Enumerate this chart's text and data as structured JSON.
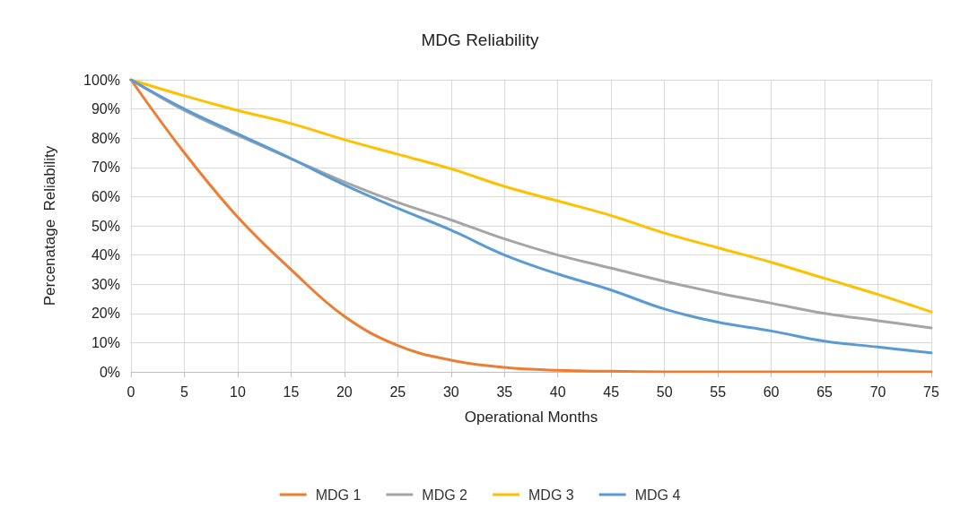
{
  "chart_data": {
    "type": "line",
    "title": "MDG Reliability",
    "xlabel": "Operational Months",
    "ylabel": "Percenatage  Reliability",
    "x": [
      0,
      5,
      10,
      15,
      20,
      25,
      30,
      35,
      40,
      45,
      50,
      55,
      60,
      65,
      70,
      75
    ],
    "xlim": [
      0,
      75
    ],
    "xticks": [
      0,
      5,
      10,
      15,
      20,
      25,
      30,
      35,
      40,
      45,
      50,
      55,
      60,
      65,
      70,
      75
    ],
    "ylim": [
      0,
      100
    ],
    "yticks": [
      {
        "value": 0,
        "label": "0%"
      },
      {
        "value": 10,
        "label": "10%"
      },
      {
        "value": 20,
        "label": "20%"
      },
      {
        "value": 30,
        "label": "30%"
      },
      {
        "value": 40,
        "label": "40%"
      },
      {
        "value": 50,
        "label": "50%"
      },
      {
        "value": 60,
        "label": "60%"
      },
      {
        "value": 70,
        "label": "70%"
      },
      {
        "value": 80,
        "label": "80%"
      },
      {
        "value": 90,
        "label": "90%"
      },
      {
        "value": 100,
        "label": "100%"
      }
    ],
    "grid": true,
    "legend": "bottom",
    "marker": "none",
    "line_style": "solid",
    "series": [
      {
        "name": "MDG 1",
        "color": "#ed7d31",
        "values": [
          100,
          75,
          53,
          35,
          19,
          9,
          4,
          1.5,
          0.5,
          0.2,
          0,
          0,
          0,
          0,
          0,
          0
        ]
      },
      {
        "name": "MDG 2",
        "color": "#a5a5a5",
        "values": [
          100,
          89.5,
          81,
          73,
          65,
          58,
          52,
          45.5,
          40,
          35.5,
          31,
          27,
          23.5,
          20,
          17.5,
          15
        ]
      },
      {
        "name": "MDG 3",
        "color": "#ffc000",
        "values": [
          100,
          94.5,
          89.5,
          85,
          79.5,
          74.5,
          69.5,
          63.5,
          58.5,
          53.5,
          47.5,
          42.5,
          37.5,
          32,
          26.5,
          20.5
        ]
      },
      {
        "name": "MDG 4",
        "color": "#5b9bd5",
        "values": [
          100,
          90,
          81.5,
          73,
          64,
          56,
          48.5,
          40,
          33.5,
          28,
          21.5,
          17,
          14,
          10.5,
          8.5,
          6.5
        ]
      }
    ]
  }
}
